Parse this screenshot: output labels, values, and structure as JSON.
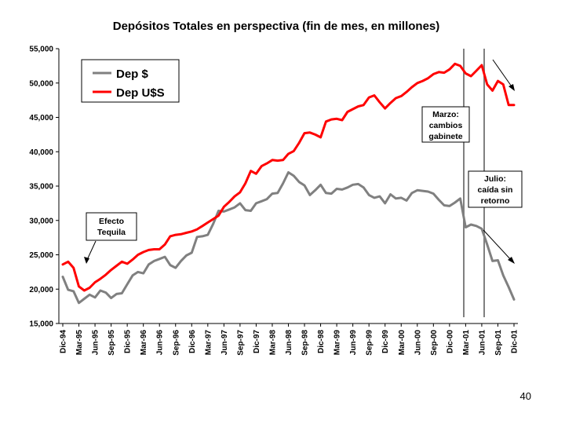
{
  "chart_data": {
    "type": "line",
    "title": "Depósitos Totales en perspectiva (fin de mes, en millones)",
    "xlabel": "",
    "ylabel": "",
    "ylim": [
      15000,
      55000
    ],
    "yticks": [
      15000,
      20000,
      25000,
      30000,
      35000,
      40000,
      45000,
      50000,
      55000
    ],
    "ytick_labels": [
      "15,000",
      "20,000",
      "25,000",
      "30,000",
      "35,000",
      "40,000",
      "45,000",
      "50,000",
      "55,000"
    ],
    "x_start": "Dic-94",
    "x_count": 85,
    "x_tick_labels": [
      "Dic-94",
      "Mar-95",
      "Jun-95",
      "Sep-95",
      "Dic-95",
      "Mar-96",
      "Jun-96",
      "Sep-96",
      "Dic-96",
      "Mar-97",
      "Jun-97",
      "Sep-97",
      "Dic-97",
      "Mar-98",
      "Jun-98",
      "Sep-98",
      "Dic-98",
      "Mar-99",
      "Jun-99",
      "Sep-99",
      "Dic-99",
      "Mar-00",
      "Jun-00",
      "Sep-00",
      "Dic-00",
      "Mar-01",
      "Jun-01",
      "Sep-01",
      "Dic-01"
    ],
    "legend_position": "top-left",
    "series": [
      {
        "name": "Dep $",
        "color": "#808080",
        "values": [
          21800,
          19900,
          19700,
          18000,
          18600,
          19200,
          18800,
          19800,
          19500,
          18700,
          19300,
          19400,
          20700,
          22000,
          22500,
          22300,
          23600,
          24100,
          24400,
          24700,
          23500,
          23100,
          24100,
          24900,
          25300,
          27600,
          27700,
          27900,
          29500,
          31400,
          31300,
          31600,
          31900,
          32500,
          31500,
          31400,
          32500,
          32800,
          33100,
          33900,
          34000,
          35400,
          37000,
          36500,
          35600,
          35100,
          33700,
          34400,
          35200,
          34000,
          33900,
          34600,
          34500,
          34800,
          35200,
          35300,
          34800,
          33700,
          33300,
          33500,
          32500,
          33800,
          33200,
          33300,
          32900,
          34000,
          34400,
          34300,
          34200,
          33900,
          33000,
          32200,
          32100,
          32600,
          33200,
          29000,
          29400,
          29200,
          28800,
          26500,
          24100,
          24200,
          22000,
          20300,
          18500
        ]
      },
      {
        "name": "Dep U$S",
        "color": "#ff0000",
        "values": [
          23600,
          24000,
          23100,
          20400,
          19800,
          20200,
          21000,
          21500,
          22100,
          22800,
          23400,
          24000,
          23700,
          24300,
          25000,
          25400,
          25700,
          25800,
          25800,
          26500,
          27700,
          27900,
          28000,
          28200,
          28400,
          28700,
          29200,
          29700,
          30200,
          30700,
          32000,
          32700,
          33500,
          34100,
          35400,
          37200,
          36800,
          37900,
          38300,
          38800,
          38700,
          38800,
          39700,
          40100,
          41300,
          42700,
          42800,
          42500,
          42100,
          44400,
          44700,
          44800,
          44600,
          45800,
          46200,
          46600,
          46800,
          47900,
          48200,
          47200,
          46300,
          47100,
          47800,
          48100,
          48700,
          49400,
          50000,
          50300,
          50700,
          51300,
          51600,
          51500,
          52000,
          52800,
          52500,
          51400,
          51000,
          51800,
          52600,
          49800,
          48900,
          50300,
          49800,
          46800,
          46800
        ]
      }
    ]
  },
  "legend": {
    "items": [
      {
        "label": "Dep $",
        "color": "#808080"
      },
      {
        "label": "Dep U$S",
        "color": "#ff0000"
      }
    ]
  },
  "annotations": {
    "efecto": {
      "line1": "Efecto",
      "line2": "Tequila"
    },
    "marzo": {
      "line1": "Marzo:",
      "line2": "cambios",
      "line3": "gabinete"
    },
    "julio": {
      "line1": "Julio:",
      "line2": "caída sin",
      "line3": "retorno"
    }
  },
  "slide_number": "40"
}
